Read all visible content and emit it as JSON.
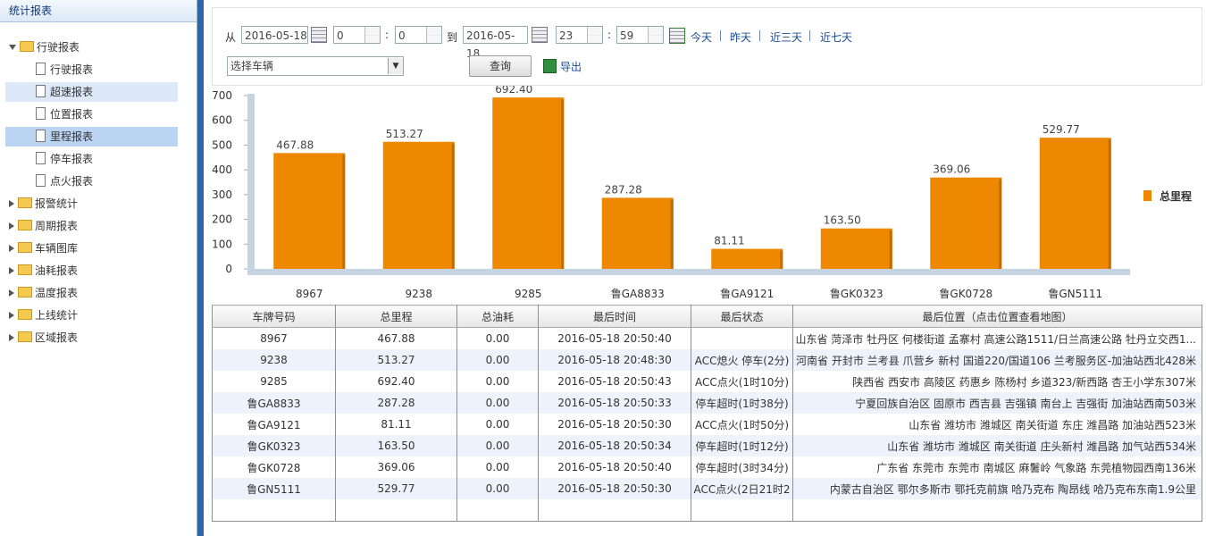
{
  "sidebar": {
    "title": "统计报表",
    "tree": [
      {
        "label": "行驶报表",
        "expanded": true,
        "children": [
          {
            "label": "行驶报表"
          },
          {
            "label": "超速报表",
            "highlight": "hover"
          },
          {
            "label": "位置报表"
          },
          {
            "label": "里程报表",
            "highlight": "selected"
          },
          {
            "label": "停车报表"
          },
          {
            "label": "点火报表"
          }
        ]
      },
      {
        "label": "报警统计"
      },
      {
        "label": "周期报表"
      },
      {
        "label": "车辆图库"
      },
      {
        "label": "油耗报表"
      },
      {
        "label": "温度报表"
      },
      {
        "label": "上线统计"
      },
      {
        "label": "区域报表"
      }
    ]
  },
  "filter": {
    "from_label": "从",
    "start_date": "2016-05-18",
    "start_hour": "0",
    "start_minute": "0",
    "time_separator": ":",
    "to_label": "到",
    "end_date": "2016-05-18",
    "end_hour": "23",
    "end_minute": "59",
    "quick_ranges": [
      "今天",
      "昨天",
      "近三天",
      "近七天"
    ],
    "vehicle_select": "选择车辆",
    "query_button": "查询",
    "export_link": "导出"
  },
  "chart_data": {
    "type": "bar",
    "categories": [
      "8967",
      "9238",
      "9285",
      "鲁GA8833",
      "鲁GA9121",
      "鲁GK0323",
      "鲁GK0728",
      "鲁GN5111"
    ],
    "series": [
      {
        "name": "总里程",
        "color": "#ee8800",
        "values": [
          467.88,
          513.27,
          692.4,
          287.28,
          81.11,
          163.5,
          369.06,
          529.77
        ],
        "value_labels": [
          "467.88",
          "513.27",
          "692.40",
          "287.28",
          "81.11",
          "163.50",
          "369.06",
          "529.77"
        ]
      }
    ],
    "ylim": [
      0,
      700
    ],
    "yticks": [
      0,
      100,
      200,
      300,
      400,
      500,
      600,
      700
    ],
    "legend": "right"
  },
  "table": {
    "headers": [
      "车牌号码",
      "总里程",
      "总油耗",
      "最后时间",
      "最后状态",
      "最后位置（点击位置查看地图）"
    ],
    "rows": [
      [
        "8967",
        "467.88",
        "0.00",
        "2016-05-18 20:50:40",
        null,
        "山东省 菏泽市 牡丹区 何楼街道 孟寨村 高速公路1511/日兰高速公路 牡丹立交西1..."
      ],
      [
        "9238",
        "513.27",
        "0.00",
        "2016-05-18 20:48:30",
        "ACC熄火 停车(2分)",
        "河南省 开封市 兰考县 爪营乡 新村 国道220/国道106 兰考服务区-加油站西北428米"
      ],
      [
        "9285",
        "692.40",
        "0.00",
        "2016-05-18 20:50:43",
        "ACC点火(1时10分)",
        "陕西省 西安市 高陵区 药惠乡 陈杨村 乡道323/新西路 杏王小学东307米"
      ],
      [
        "鲁GA8833",
        "287.28",
        "0.00",
        "2016-05-18 20:50:33",
        "停车超时(1时38分)",
        "宁夏回族自治区 固原市 西吉县 吉强镇 南台上 吉强街 加油站西南503米"
      ],
      [
        "鲁GA9121",
        "81.11",
        "0.00",
        "2016-05-18 20:50:30",
        "ACC点火(1时50分)",
        "山东省 潍坊市 潍城区 南关街道 东庄 潍昌路 加油站西523米"
      ],
      [
        "鲁GK0323",
        "163.50",
        "0.00",
        "2016-05-18 20:50:34",
        "停车超时(1时12分)",
        "山东省 潍坊市 潍城区 南关街道 庄头新村 潍昌路 加气站西534米"
      ],
      [
        "鲁GK0728",
        "369.06",
        "0.00",
        "2016-05-18 20:50:40",
        "停车超时(3时34分)",
        "广东省 东莞市 东莞市 南城区 麻鬐岭 气象路 东莞植物园西南136米"
      ],
      [
        "鲁GN5111",
        "529.77",
        "0.00",
        "2016-05-18 20:50:30",
        "ACC点火(2日21时2",
        "内蒙古自治区 鄂尔多斯市 鄂托克前旗 哈乃克布 陶昂线 哈乃克布东南1.9公里"
      ]
    ]
  }
}
